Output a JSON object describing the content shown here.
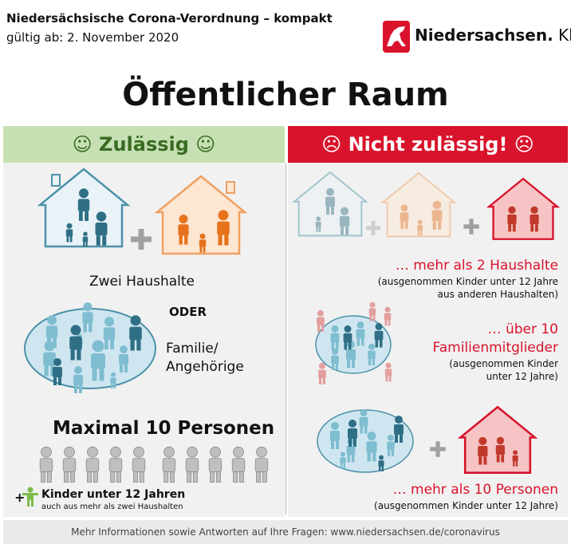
{
  "header": {
    "line1": "Niedersächsische Corona-Verordnung – kompakt",
    "line2": "gültig ab: 2. November 2020"
  },
  "brand": {
    "name": "Niedersachsen.",
    "suffix": " Klar.",
    "logo": "horse-crest-icon"
  },
  "title": "Öffentlicher Raum",
  "allowed": {
    "band": "☺ Zulässig ☺",
    "two_households": "Zwei Haushalte",
    "oder": "ODER",
    "family": "Familie/",
    "family2": "Angehörige",
    "max": "Maximal 10 Personen",
    "children": "Kinder unter 12 Jahren",
    "children_sub": "auch aus mehr als zwei Haushalten",
    "plus": "+"
  },
  "forbidden": {
    "band": "☹ Nicht zulässig! ☹",
    "households": "… mehr als 2 Haushalte",
    "households_sub1": "(ausgenommen Kinder unter 12 Jahre",
    "households_sub2": "aus anderen Haushalten)",
    "family": "… über 10",
    "family2": "Familienmitglieder",
    "family_sub1": "(ausgenommen Kinder",
    "family_sub2": "unter 12 Jahre)",
    "persons": "… mehr als 10 Personen",
    "persons_sub": "(ausgenommen Kinder unter 12 Jahre)"
  },
  "footer": "Mehr Informationen sowie Antworten auf Ihre Fragen: www.niedersachsen.de/coronavirus",
  "colors": {
    "green": "#c6e0b4",
    "green_text": "#3a6b22",
    "red": "#d8132b",
    "teal": "#3a7f93",
    "orange": "#e6731c",
    "light_blue": "#cfe6f0",
    "gray": "#bdbdbd"
  }
}
